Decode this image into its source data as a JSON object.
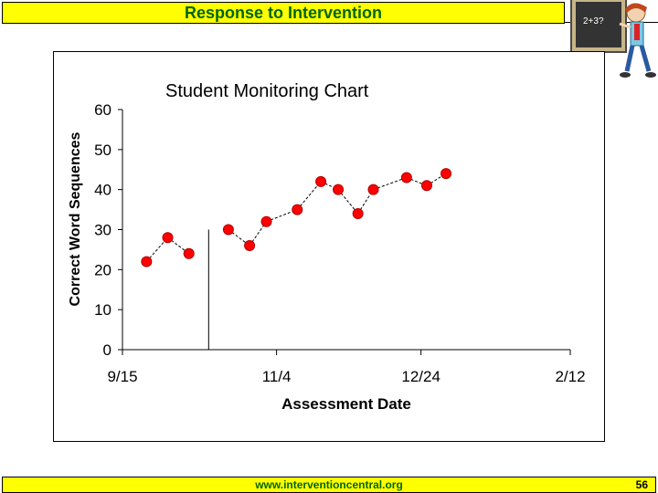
{
  "header": {
    "title": "Response to Intervention"
  },
  "footer": {
    "url": "www.interventioncentral.org",
    "page_number": "56"
  },
  "mascot": {
    "board_text": "2+3?"
  },
  "chart_data": {
    "type": "line",
    "title": "Student Monitoring Chart",
    "xlabel": "Assessment Date",
    "ylabel": "Correct Word Sequences",
    "ylim": [
      0,
      60
    ],
    "yticks": [
      0,
      10,
      20,
      30,
      40,
      50,
      60
    ],
    "xticks": [
      "9/15",
      "11/4",
      "12/24",
      "2/12"
    ],
    "phase_change_after_point": 3,
    "series": [
      {
        "color": "#ff0000",
        "values": [
          22,
          28,
          24,
          30,
          26,
          32,
          35,
          42,
          40,
          34,
          40,
          43,
          41,
          44
        ]
      }
    ],
    "x_positions": [
      0.5,
      0.94,
      1.38,
      2.2,
      2.64,
      2.99,
      3.63,
      4.12,
      4.48,
      4.89,
      5.21,
      5.9,
      6.32,
      6.72
    ],
    "x_tick_positions": [
      0,
      3.2,
      6.2,
      9.3
    ],
    "connected_segments": [
      [
        0,
        2
      ],
      [
        3,
        13
      ]
    ]
  }
}
